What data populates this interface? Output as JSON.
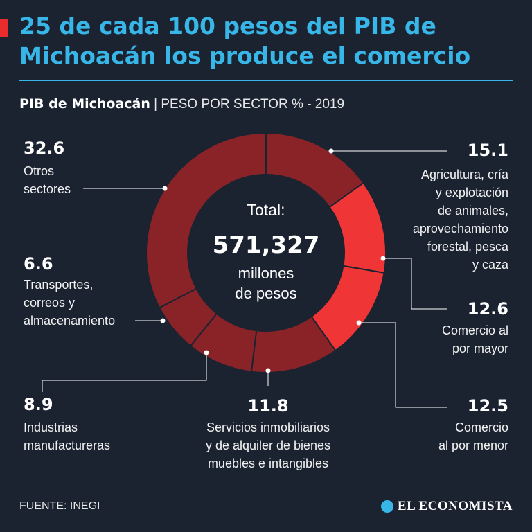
{
  "header": {
    "title_line1": "25 de cada 100 pesos del PIB de",
    "title_line2": "Michoacán los produce el comercio",
    "subtitle_strong": "PIB de Michoacán",
    "subtitle_light": "| PESO POR SECTOR % - 2019"
  },
  "center": {
    "total_label": "Total:",
    "total_value": "571,327",
    "unit_line1": "millones",
    "unit_line2": "de pesos"
  },
  "chart_data": {
    "type": "pie",
    "variant": "donut",
    "title": "PIB de Michoacán | PESO POR SECTOR % - 2019",
    "unit": "%",
    "slices": [
      {
        "label": "Agricultura, cría y explotación de animales, aprovechamiento forestal, pesca y caza",
        "value": 15.1,
        "color": "#8a2327"
      },
      {
        "label": "Comercio al por mayor",
        "value": 12.6,
        "color": "#ef3535"
      },
      {
        "label": "Comercio al por menor",
        "value": 12.5,
        "color": "#ef3535"
      },
      {
        "label": "Servicios inmobiliarios y de alquiler de bienes muebles e intangibles",
        "value": 11.8,
        "color": "#8a2327"
      },
      {
        "label": "Industrias manufactureras",
        "value": 8.9,
        "color": "#8a2327"
      },
      {
        "label": "Transportes, correos y almacenamiento",
        "value": 6.6,
        "color": "#8a2327"
      },
      {
        "label": "Otros sectores",
        "value": 32.6,
        "color": "#8a2327"
      }
    ]
  },
  "callouts": {
    "agri": {
      "value": "15.1",
      "lines": [
        "Agricultura, cría",
        "y explotación",
        "de animales,",
        "aprovechamiento",
        "forestal, pesca",
        "y caza"
      ]
    },
    "mayor": {
      "value": "12.6",
      "lines": [
        "Comercio al",
        "por mayor"
      ]
    },
    "menor": {
      "value": "12.5",
      "lines": [
        "Comercio",
        "al por menor"
      ]
    },
    "inmob": {
      "value": "11.8",
      "lines": [
        "Servicios inmobiliarios",
        "y de alquiler de bienes",
        "muebles e intangibles"
      ]
    },
    "manuf": {
      "value": "8.9",
      "lines": [
        "Industrias",
        "manufactureras"
      ]
    },
    "transp": {
      "value": "6.6",
      "lines": [
        "Transportes,",
        "correos y",
        "almacenamiento"
      ]
    },
    "otros": {
      "value": "32.6",
      "lines": [
        "Otros",
        "sectores"
      ]
    }
  },
  "footer": {
    "source": "FUENTE: INEGI",
    "brand": "EL ECONOMISTA"
  },
  "colors": {
    "background": "#1b2331",
    "accent_blue": "#38b6e8",
    "accent_red": "#ea2c2c",
    "slice_dark": "#8a2327",
    "slice_bright": "#ef3535"
  }
}
